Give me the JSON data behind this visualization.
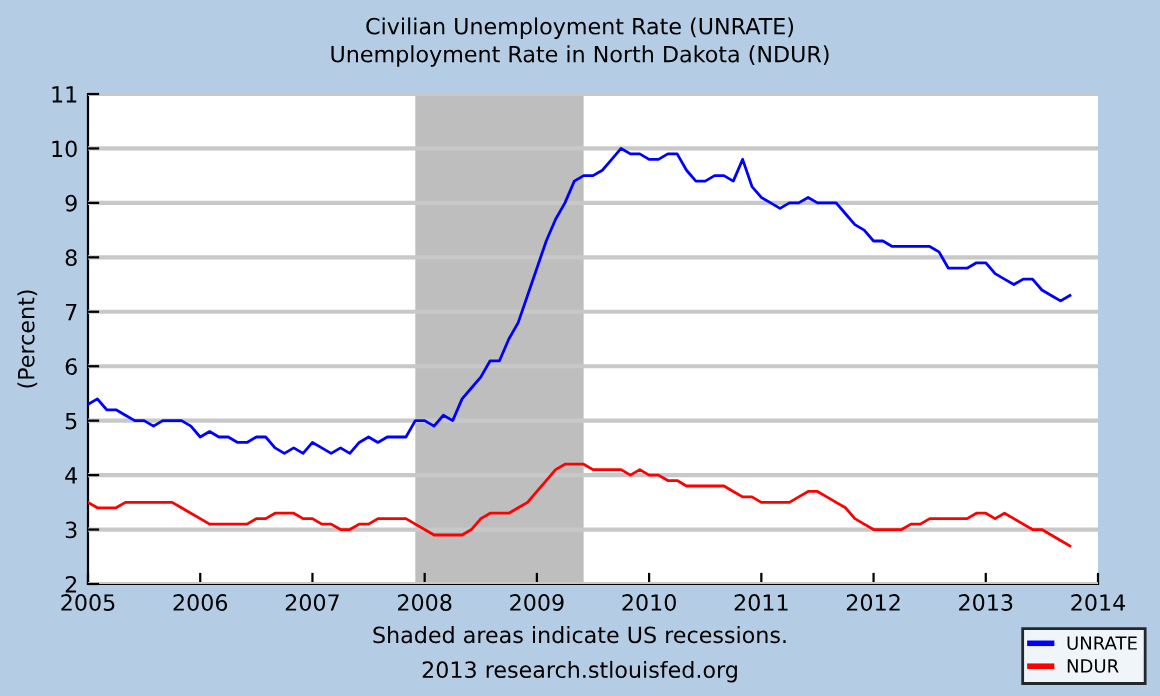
{
  "chart_data": {
    "type": "line",
    "title": "Civilian Unemployment Rate (UNRATE)",
    "subtitle": "Unemployment Rate in North Dakota (NDUR)",
    "ylabel": "(Percent)",
    "annotations": [
      "Shaded areas indicate US recessions.",
      "2013 research.stlouisfed.org"
    ],
    "x": [
      "2005-01",
      "2005-02",
      "2005-03",
      "2005-04",
      "2005-05",
      "2005-06",
      "2005-07",
      "2005-08",
      "2005-09",
      "2005-10",
      "2005-11",
      "2005-12",
      "2006-01",
      "2006-02",
      "2006-03",
      "2006-04",
      "2006-05",
      "2006-06",
      "2006-07",
      "2006-08",
      "2006-09",
      "2006-10",
      "2006-11",
      "2006-12",
      "2007-01",
      "2007-02",
      "2007-03",
      "2007-04",
      "2007-05",
      "2007-06",
      "2007-07",
      "2007-08",
      "2007-09",
      "2007-10",
      "2007-11",
      "2007-12",
      "2008-01",
      "2008-02",
      "2008-03",
      "2008-04",
      "2008-05",
      "2008-06",
      "2008-07",
      "2008-08",
      "2008-09",
      "2008-10",
      "2008-11",
      "2008-12",
      "2009-01",
      "2009-02",
      "2009-03",
      "2009-04",
      "2009-05",
      "2009-06",
      "2009-07",
      "2009-08",
      "2009-09",
      "2009-10",
      "2009-11",
      "2009-12",
      "2010-01",
      "2010-02",
      "2010-03",
      "2010-04",
      "2010-05",
      "2010-06",
      "2010-07",
      "2010-08",
      "2010-09",
      "2010-10",
      "2010-11",
      "2010-12",
      "2011-01",
      "2011-02",
      "2011-03",
      "2011-04",
      "2011-05",
      "2011-06",
      "2011-07",
      "2011-08",
      "2011-09",
      "2011-10",
      "2011-11",
      "2011-12",
      "2012-01",
      "2012-02",
      "2012-03",
      "2012-04",
      "2012-05",
      "2012-06",
      "2012-07",
      "2012-08",
      "2012-09",
      "2012-10",
      "2012-11",
      "2012-12",
      "2013-01",
      "2013-02",
      "2013-03",
      "2013-04",
      "2013-05",
      "2013-06",
      "2013-07",
      "2013-08",
      "2013-09",
      "2013-10"
    ],
    "series": [
      {
        "name": "UNRATE",
        "color": "#0000ff",
        "values": [
          5.3,
          5.4,
          5.2,
          5.2,
          5.1,
          5.0,
          5.0,
          4.9,
          5.0,
          5.0,
          5.0,
          4.9,
          4.7,
          4.8,
          4.7,
          4.7,
          4.6,
          4.6,
          4.7,
          4.7,
          4.5,
          4.4,
          4.5,
          4.4,
          4.6,
          4.5,
          4.4,
          4.5,
          4.4,
          4.6,
          4.7,
          4.6,
          4.7,
          4.7,
          4.7,
          5.0,
          5.0,
          4.9,
          5.1,
          5.0,
          5.4,
          5.6,
          5.8,
          6.1,
          6.1,
          6.5,
          6.8,
          7.3,
          7.8,
          8.3,
          8.7,
          9.0,
          9.4,
          9.5,
          9.5,
          9.6,
          9.8,
          10.0,
          9.9,
          9.9,
          9.8,
          9.8,
          9.9,
          9.9,
          9.6,
          9.4,
          9.4,
          9.5,
          9.5,
          9.4,
          9.8,
          9.3,
          9.1,
          9.0,
          8.9,
          9.0,
          9.0,
          9.1,
          9.0,
          9.0,
          9.0,
          8.8,
          8.6,
          8.5,
          8.3,
          8.3,
          8.2,
          8.2,
          8.2,
          8.2,
          8.2,
          8.1,
          7.8,
          7.8,
          7.8,
          7.9,
          7.9,
          7.7,
          7.6,
          7.5,
          7.6,
          7.6,
          7.4,
          7.3,
          7.2,
          7.3
        ]
      },
      {
        "name": "NDUR",
        "color": "#ff0000",
        "values": [
          3.5,
          3.4,
          3.4,
          3.4,
          3.5,
          3.5,
          3.5,
          3.5,
          3.5,
          3.5,
          3.4,
          3.3,
          3.2,
          3.1,
          3.1,
          3.1,
          3.1,
          3.1,
          3.2,
          3.2,
          3.3,
          3.3,
          3.3,
          3.2,
          3.2,
          3.1,
          3.1,
          3.0,
          3.0,
          3.1,
          3.1,
          3.2,
          3.2,
          3.2,
          3.2,
          3.1,
          3.0,
          2.9,
          2.9,
          2.9,
          2.9,
          3.0,
          3.2,
          3.3,
          3.3,
          3.3,
          3.4,
          3.5,
          3.7,
          3.9,
          4.1,
          4.2,
          4.2,
          4.2,
          4.1,
          4.1,
          4.1,
          4.1,
          4.0,
          4.1,
          4.0,
          4.0,
          3.9,
          3.9,
          3.8,
          3.8,
          3.8,
          3.8,
          3.8,
          3.7,
          3.6,
          3.6,
          3.5,
          3.5,
          3.5,
          3.5,
          3.6,
          3.7,
          3.7,
          3.6,
          3.5,
          3.4,
          3.2,
          3.1,
          3.0,
          3.0,
          3.0,
          3.0,
          3.1,
          3.1,
          3.2,
          3.2,
          3.2,
          3.2,
          3.2,
          3.3,
          3.3,
          3.2,
          3.3,
          3.2,
          3.1,
          3.0,
          3.0,
          2.9,
          2.8,
          2.7
        ]
      }
    ],
    "xlim": [
      "2005",
      "2014"
    ],
    "xticks": [
      "2005",
      "2006",
      "2007",
      "2008",
      "2009",
      "2010",
      "2011",
      "2012",
      "2013",
      "2014"
    ],
    "ylim": [
      2,
      11
    ],
    "yticks": [
      2,
      3,
      4,
      5,
      6,
      7,
      8,
      9,
      10,
      11
    ],
    "bands": [
      {
        "axis": "x",
        "from": "2007-12",
        "to": "2009-06",
        "color": "#bebebe"
      }
    ],
    "grid": "y",
    "legend": "bottom right",
    "line_style": "solid",
    "marker": "none"
  }
}
